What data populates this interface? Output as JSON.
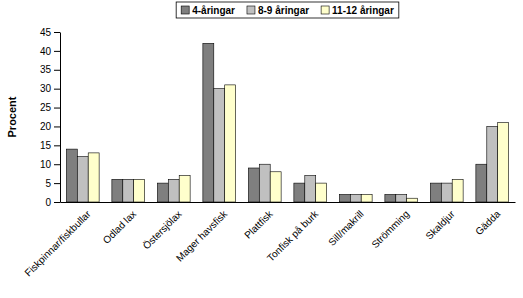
{
  "chart_data": {
    "type": "bar",
    "y_label": "Procent",
    "categories": [
      "Fiskpinnar/fiskbullar",
      "Odlad lax",
      "Östersjölax",
      "Mager havsfisk",
      "Plattfisk",
      "Tonfisk på burk",
      "Sill/makrill",
      "Strömming",
      "Skaldjur",
      "Gädda"
    ],
    "series": [
      {
        "name": "4-åringar",
        "color": "#7f7f7f",
        "values": [
          14,
          6,
          5,
          42,
          9,
          5,
          2,
          2,
          5,
          10
        ]
      },
      {
        "name": "8-9 åringar",
        "color": "#c0c0c0",
        "values": [
          12,
          6,
          6,
          30,
          10,
          7,
          2,
          2,
          5,
          20
        ]
      },
      {
        "name": "11-12 åringar",
        "color": "#ffffcc",
        "values": [
          13,
          6,
          7,
          31,
          8,
          5,
          2,
          1,
          6,
          21
        ]
      }
    ],
    "ylim": [
      0,
      45
    ],
    "yticks": [
      0,
      5,
      10,
      15,
      20,
      25,
      30,
      35,
      40,
      45
    ],
    "grid": false,
    "legend": "top"
  }
}
